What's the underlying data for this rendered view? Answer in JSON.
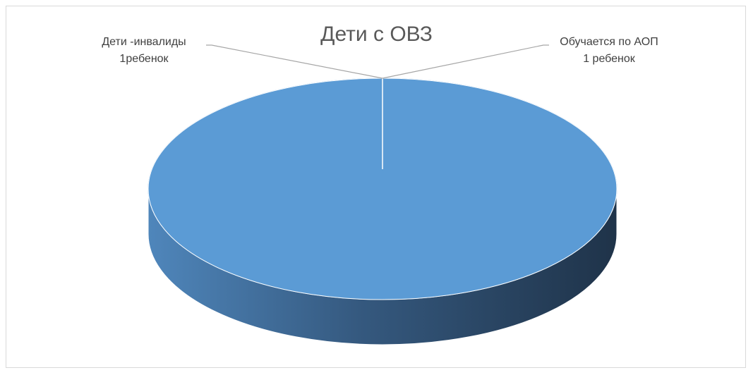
{
  "chart_data": {
    "type": "pie",
    "title": "Дети с ОВЗ",
    "categories": [
      "Дети -инвалиды",
      "Обучается по АОП"
    ],
    "values": [
      1,
      1
    ],
    "labels": [
      {
        "category": "Дети -инвалиды",
        "value_text": "1ребенок"
      },
      {
        "category": "Обучается по АОП",
        "value_text": "1 ребенок"
      }
    ],
    "style": "3d",
    "colors": {
      "top_face": "#5b9bd5",
      "side_light": "#4a7fb0",
      "side_dark": "#1f3349",
      "edge": "#ffffff",
      "leader_line": "#a6a6a6"
    },
    "legend": "none"
  }
}
